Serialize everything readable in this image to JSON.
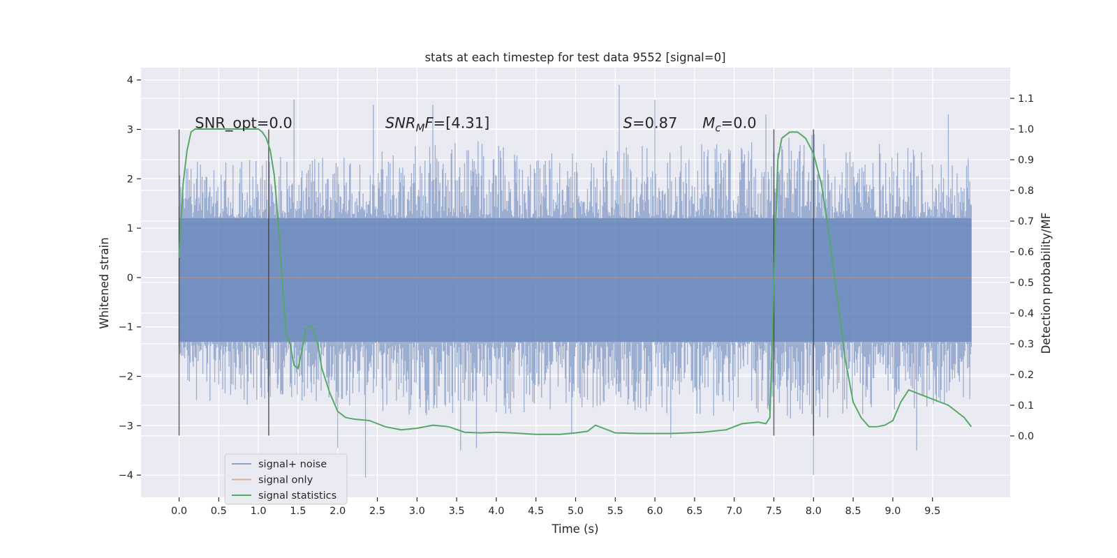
{
  "chart_data": {
    "type": "line",
    "title": "stats at each timestep for test data 9552 [signal=0]",
    "xlabel": "Time (s)",
    "ylabel_left": "Whitened strain",
    "ylabel_right": "Detection probability/MF",
    "xlim": [
      -0.48,
      10.48
    ],
    "ylim_left": [
      -4.45,
      4.25
    ],
    "ylim_right": [
      -0.2,
      1.2
    ],
    "x_ticks": [
      0.0,
      0.5,
      1.0,
      1.5,
      2.0,
      2.5,
      3.0,
      3.5,
      4.0,
      4.5,
      5.0,
      5.5,
      6.0,
      6.5,
      7.0,
      7.5,
      8.0,
      8.5,
      9.0,
      9.5
    ],
    "x_tick_labels": [
      "0.0",
      "0.5",
      "1.0",
      "1.5",
      "2.0",
      "2.5",
      "3.0",
      "3.5",
      "4.0",
      "4.5",
      "5.0",
      "5.5",
      "6.0",
      "6.5",
      "7.0",
      "7.5",
      "8.0",
      "8.5",
      "9.0",
      "9.5"
    ],
    "y_left_ticks": [
      -4,
      -3,
      -2,
      -1,
      0,
      1,
      2,
      3,
      4
    ],
    "y_left_tick_labels": [
      "−4",
      "−3",
      "−2",
      "−1",
      "0",
      "1",
      "2",
      "3",
      "4"
    ],
    "y_right_ticks": [
      0.0,
      0.1,
      0.2,
      0.3,
      0.4,
      0.5,
      0.6,
      0.7,
      0.8,
      0.9,
      1.0,
      1.1
    ],
    "y_right_tick_labels": [
      "0.0",
      "0.1",
      "0.2",
      "0.3",
      "0.4",
      "0.5",
      "0.6",
      "0.7",
      "0.8",
      "0.9",
      "1.0",
      "1.1"
    ],
    "grid": true,
    "legend_position": "lower-left",
    "series": [
      {
        "name": "signal+ noise",
        "axis": "left",
        "color": "#4c72b0",
        "alpha": 0.5,
        "x_range": [
          0.0,
          9.99
        ],
        "core_band": [
          -1.3,
          1.2
        ],
        "envelope_upper": [
          [
            0.0,
            2.3
          ],
          [
            1.0,
            2.6
          ],
          [
            2.0,
            2.5
          ],
          [
            3.0,
            2.7
          ],
          [
            4.0,
            2.8
          ],
          [
            5.0,
            2.6
          ],
          [
            6.0,
            2.7
          ],
          [
            7.0,
            2.7
          ],
          [
            8.0,
            2.9
          ],
          [
            9.0,
            2.7
          ],
          [
            9.99,
            2.4
          ]
        ],
        "envelope_lower": [
          [
            0.0,
            -2.5
          ],
          [
            1.0,
            -2.6
          ],
          [
            2.0,
            -2.6
          ],
          [
            3.0,
            -2.8
          ],
          [
            4.0,
            -2.8
          ],
          [
            5.0,
            -2.7
          ],
          [
            6.0,
            -2.8
          ],
          [
            7.0,
            -2.8
          ],
          [
            8.0,
            -2.9
          ],
          [
            9.0,
            -2.7
          ],
          [
            9.99,
            -2.5
          ]
        ],
        "extremes": [
          [
            1.45,
            3.6
          ],
          [
            2.45,
            3.5
          ],
          [
            3.2,
            3.5
          ],
          [
            5.55,
            3.9
          ],
          [
            6.0,
            3.6
          ],
          [
            7.4,
            3.3
          ],
          [
            9.7,
            3.3
          ],
          [
            2.35,
            -4.05
          ],
          [
            2.0,
            -3.45
          ],
          [
            3.55,
            -3.5
          ],
          [
            3.75,
            -3.45
          ],
          [
            8.0,
            -4.0
          ],
          [
            9.3,
            -3.5
          ],
          [
            6.2,
            -3.25
          ],
          [
            4.95,
            -3.15
          ]
        ]
      },
      {
        "name": "signal only",
        "axis": "left",
        "color": "#dd8452",
        "x": [
          0.0,
          9.99
        ],
        "y": [
          0.0,
          0.0
        ]
      },
      {
        "name": "signal statistics",
        "axis": "right",
        "color": "#55a868",
        "x": [
          0.0,
          0.05,
          0.1,
          0.15,
          0.2,
          0.3,
          0.5,
          0.7,
          0.9,
          1.0,
          1.05,
          1.1,
          1.15,
          1.2,
          1.25,
          1.3,
          1.35,
          1.4,
          1.45,
          1.5,
          1.55,
          1.6,
          1.67,
          1.75,
          1.8,
          1.9,
          2.0,
          2.1,
          2.2,
          2.4,
          2.6,
          2.8,
          3.0,
          3.2,
          3.4,
          3.6,
          3.8,
          4.0,
          4.2,
          4.5,
          4.8,
          5.0,
          5.15,
          5.25,
          5.35,
          5.5,
          5.8,
          6.2,
          6.6,
          6.9,
          7.1,
          7.3,
          7.4,
          7.45,
          7.5,
          7.55,
          7.6,
          7.7,
          7.8,
          7.9,
          8.0,
          8.1,
          8.2,
          8.3,
          8.4,
          8.5,
          8.6,
          8.7,
          8.8,
          8.9,
          9.0,
          9.1,
          9.2,
          9.3,
          9.5,
          9.7,
          9.9,
          9.99
        ],
        "y": [
          0.58,
          0.82,
          0.93,
          0.99,
          1.0,
          1.0,
          1.0,
          1.0,
          1.0,
          1.0,
          0.99,
          0.97,
          0.93,
          0.85,
          0.7,
          0.5,
          0.33,
          0.3,
          0.23,
          0.22,
          0.28,
          0.35,
          0.36,
          0.3,
          0.22,
          0.14,
          0.08,
          0.06,
          0.055,
          0.05,
          0.03,
          0.02,
          0.025,
          0.035,
          0.03,
          0.012,
          0.01,
          0.012,
          0.01,
          0.005,
          0.005,
          0.01,
          0.015,
          0.035,
          0.025,
          0.01,
          0.008,
          0.008,
          0.012,
          0.02,
          0.04,
          0.045,
          0.04,
          0.06,
          0.5,
          0.9,
          0.97,
          0.99,
          0.99,
          0.97,
          0.92,
          0.82,
          0.65,
          0.45,
          0.25,
          0.11,
          0.06,
          0.03,
          0.03,
          0.035,
          0.05,
          0.11,
          0.15,
          0.14,
          0.12,
          0.1,
          0.06,
          0.03
        ]
      }
    ],
    "vertical_lines": [
      0.0,
      1.13,
      7.5,
      8.0
    ],
    "vertical_line_range": [
      -3.2,
      3.0
    ],
    "annotations": [
      {
        "text": "SNR_opt=0.0",
        "x": 0.2,
        "y": 3.0
      },
      {
        "text": "SNRMF=[4.31]",
        "x": 2.6,
        "y": 3.0
      },
      {
        "text": "S=0.87",
        "x": 5.6,
        "y": 3.0
      },
      {
        "text": "Mc=0.0",
        "x": 6.6,
        "y": 3.0
      }
    ]
  }
}
